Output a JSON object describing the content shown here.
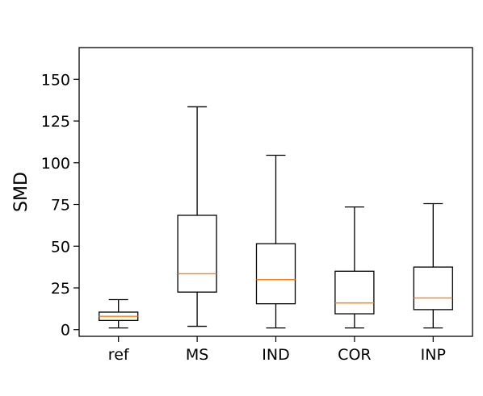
{
  "chart_data": {
    "type": "box",
    "title": "",
    "xlabel": "",
    "ylabel": "SMD",
    "ylim": [
      -4,
      169
    ],
    "yticks": [
      0,
      25,
      50,
      75,
      100,
      125,
      150
    ],
    "ytick_labels": [
      "0",
      "25",
      "50",
      "75",
      "100",
      "125",
      "150"
    ],
    "grid": false,
    "categories": [
      "ref",
      "MS",
      "IND",
      "COR",
      "INP"
    ],
    "boxes": [
      {
        "label": "ref",
        "whisker_low": 1,
        "q1": 5.5,
        "median": 8,
        "q3": 10.5,
        "whisker_high": 18
      },
      {
        "label": "MS",
        "whisker_low": 2,
        "q1": 22.5,
        "median": 33.5,
        "q3": 68.5,
        "whisker_high": 133.5
      },
      {
        "label": "IND",
        "whisker_low": 1,
        "q1": 15.5,
        "median": 30,
        "q3": 51.5,
        "whisker_high": 104.5
      },
      {
        "label": "COR",
        "whisker_low": 1,
        "q1": 9.5,
        "median": 16,
        "q3": 35,
        "whisker_high": 73.5
      },
      {
        "label": "INP",
        "whisker_low": 1,
        "q1": 12,
        "median": 19,
        "q3": 37.5,
        "whisker_high": 75.5
      }
    ],
    "colors": {
      "box": "#000000",
      "median": "#ff7f0e",
      "axes": "#000000"
    }
  }
}
